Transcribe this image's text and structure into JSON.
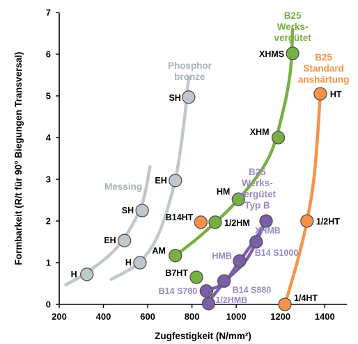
{
  "chart_data": {
    "type": "scatter",
    "xlabel": "Zugfestigkeit (N/mm²)",
    "ylabel": "Formbarkeit (R/t für 90° Biegungen Transversal)",
    "xlim": [
      200,
      1500
    ],
    "ylim": [
      0,
      7
    ],
    "x_ticks": [
      200,
      400,
      600,
      800,
      1000,
      1200,
      1400
    ],
    "y_ticks": [
      0,
      1,
      2,
      3,
      4,
      5,
      6,
      7
    ],
    "grid": false,
    "colors": {
      "messing": "#bfc8cc",
      "phosphor": "#bfc8cc",
      "werks": "#78b043",
      "standard": "#f7924a",
      "typb": "#7b5ea8",
      "typb_text": "#9889c2"
    },
    "group_labels": [
      {
        "key": "messing",
        "lines": [
          "Messing"
        ],
        "color": "#a9b3b7",
        "x": 490,
        "y": 2.75
      },
      {
        "key": "phosphor",
        "lines": [
          "Phosphor",
          "bronze"
        ],
        "color": "#a9b3b7",
        "x": 790,
        "y": 5.65
      },
      {
        "key": "werks",
        "lines": [
          "B25",
          "Werks-",
          "vergütet"
        ],
        "color": "#78b043",
        "x": 1255,
        "y": 6.85
      },
      {
        "key": "standard",
        "lines": [
          "B25",
          "Standard",
          "anshärtung"
        ],
        "color": "#f7924a",
        "x": 1395,
        "y": 5.85
      },
      {
        "key": "typb",
        "lines": [
          "B25",
          "Werks-",
          "vergütet",
          "Typ B"
        ],
        "color": "#9889c2",
        "x": 1095,
        "y": 3.1
      }
    ],
    "series": [
      {
        "key": "messing",
        "color": "#bfc8cc",
        "curve": [
          [
            230,
            0.47
          ],
          [
            330,
            0.78
          ],
          [
            450,
            1.3
          ],
          [
            530,
            1.9
          ],
          [
            580,
            2.5
          ],
          [
            610,
            3.3
          ]
        ],
        "points": [
          {
            "label": "H",
            "x": 325,
            "y": 0.72
          },
          {
            "label": "EH",
            "x": 495,
            "y": 1.53
          },
          {
            "label": "SH",
            "x": 575,
            "y": 2.25
          }
        ]
      },
      {
        "key": "phosphor",
        "color": "#bfc8cc",
        "curve": [
          [
            435,
            0.6
          ],
          [
            560,
            1.0
          ],
          [
            650,
            1.7
          ],
          [
            725,
            3.0
          ],
          [
            765,
            4.4
          ],
          [
            785,
            5.45
          ]
        ],
        "points": [
          {
            "label": "H",
            "x": 565,
            "y": 1.0
          },
          {
            "label": "EH",
            "x": 725,
            "y": 2.97
          },
          {
            "label": "SH",
            "x": 785,
            "y": 4.97
          }
        ]
      },
      {
        "key": "werks",
        "color": "#78b043",
        "curve": [
          [
            725,
            1.17
          ],
          [
            850,
            1.7
          ],
          [
            1010,
            2.52
          ],
          [
            1145,
            3.5
          ],
          [
            1210,
            4.6
          ],
          [
            1245,
            5.6
          ],
          [
            1255,
            6.6
          ]
        ],
        "points": [
          {
            "label": "AM",
            "x": 725,
            "y": 1.17
          },
          {
            "label": "1/2HM",
            "x": 905,
            "y": 1.97
          },
          {
            "label": "HM",
            "x": 1010,
            "y": 2.52
          },
          {
            "label": "XHM",
            "x": 1190,
            "y": 4.0
          },
          {
            "label": "XHMS",
            "x": 1255,
            "y": 6.02
          }
        ]
      },
      {
        "key": "standard",
        "color": "#f7924a",
        "curve": [
          [
            1220,
            0.0
          ],
          [
            1275,
            1.0
          ],
          [
            1320,
            2.0
          ],
          [
            1355,
            3.2
          ],
          [
            1380,
            5.05
          ]
        ],
        "points": [
          {
            "label": "1/4HT",
            "x": 1220,
            "y": 0.0
          },
          {
            "label": "1/2HT",
            "x": 1320,
            "y": 2.0
          },
          {
            "label": "HT",
            "x": 1380,
            "y": 5.05
          }
        ]
      },
      {
        "key": "typb",
        "color": "#7b5ea8",
        "curve": [
          [
            855,
            0.32
          ],
          [
            940,
            0.5
          ],
          [
            1010,
            1.0
          ],
          [
            1090,
            1.6
          ],
          [
            1135,
            2.0
          ]
        ],
        "curve2": [
          [
            865,
            0.0
          ],
          [
            950,
            0.55
          ],
          [
            1050,
            1.1
          ],
          [
            1135,
            2.0
          ]
        ],
        "points": [
          {
            "label": "1/2HMB",
            "x": 875,
            "y": 0.02
          },
          {
            "label": "B14 S780",
            "x": 865,
            "y": 0.32
          },
          {
            "label": "B14 S880",
            "x": 945,
            "y": 0.56
          },
          {
            "label": "HMB",
            "x": 1015,
            "y": 1.04
          },
          {
            "label": "B14 S1000",
            "x": 1090,
            "y": 1.5
          },
          {
            "label": "XHMB",
            "x": 1135,
            "y": 2.0
          }
        ]
      },
      {
        "key": "standalone",
        "color": "#78b043",
        "points": [
          {
            "label": "B7HT",
            "x": 820,
            "y": 0.65,
            "color": "#78b043"
          },
          {
            "label": "B14HT",
            "x": 840,
            "y": 1.97,
            "color": "#f7924a"
          }
        ]
      }
    ]
  }
}
